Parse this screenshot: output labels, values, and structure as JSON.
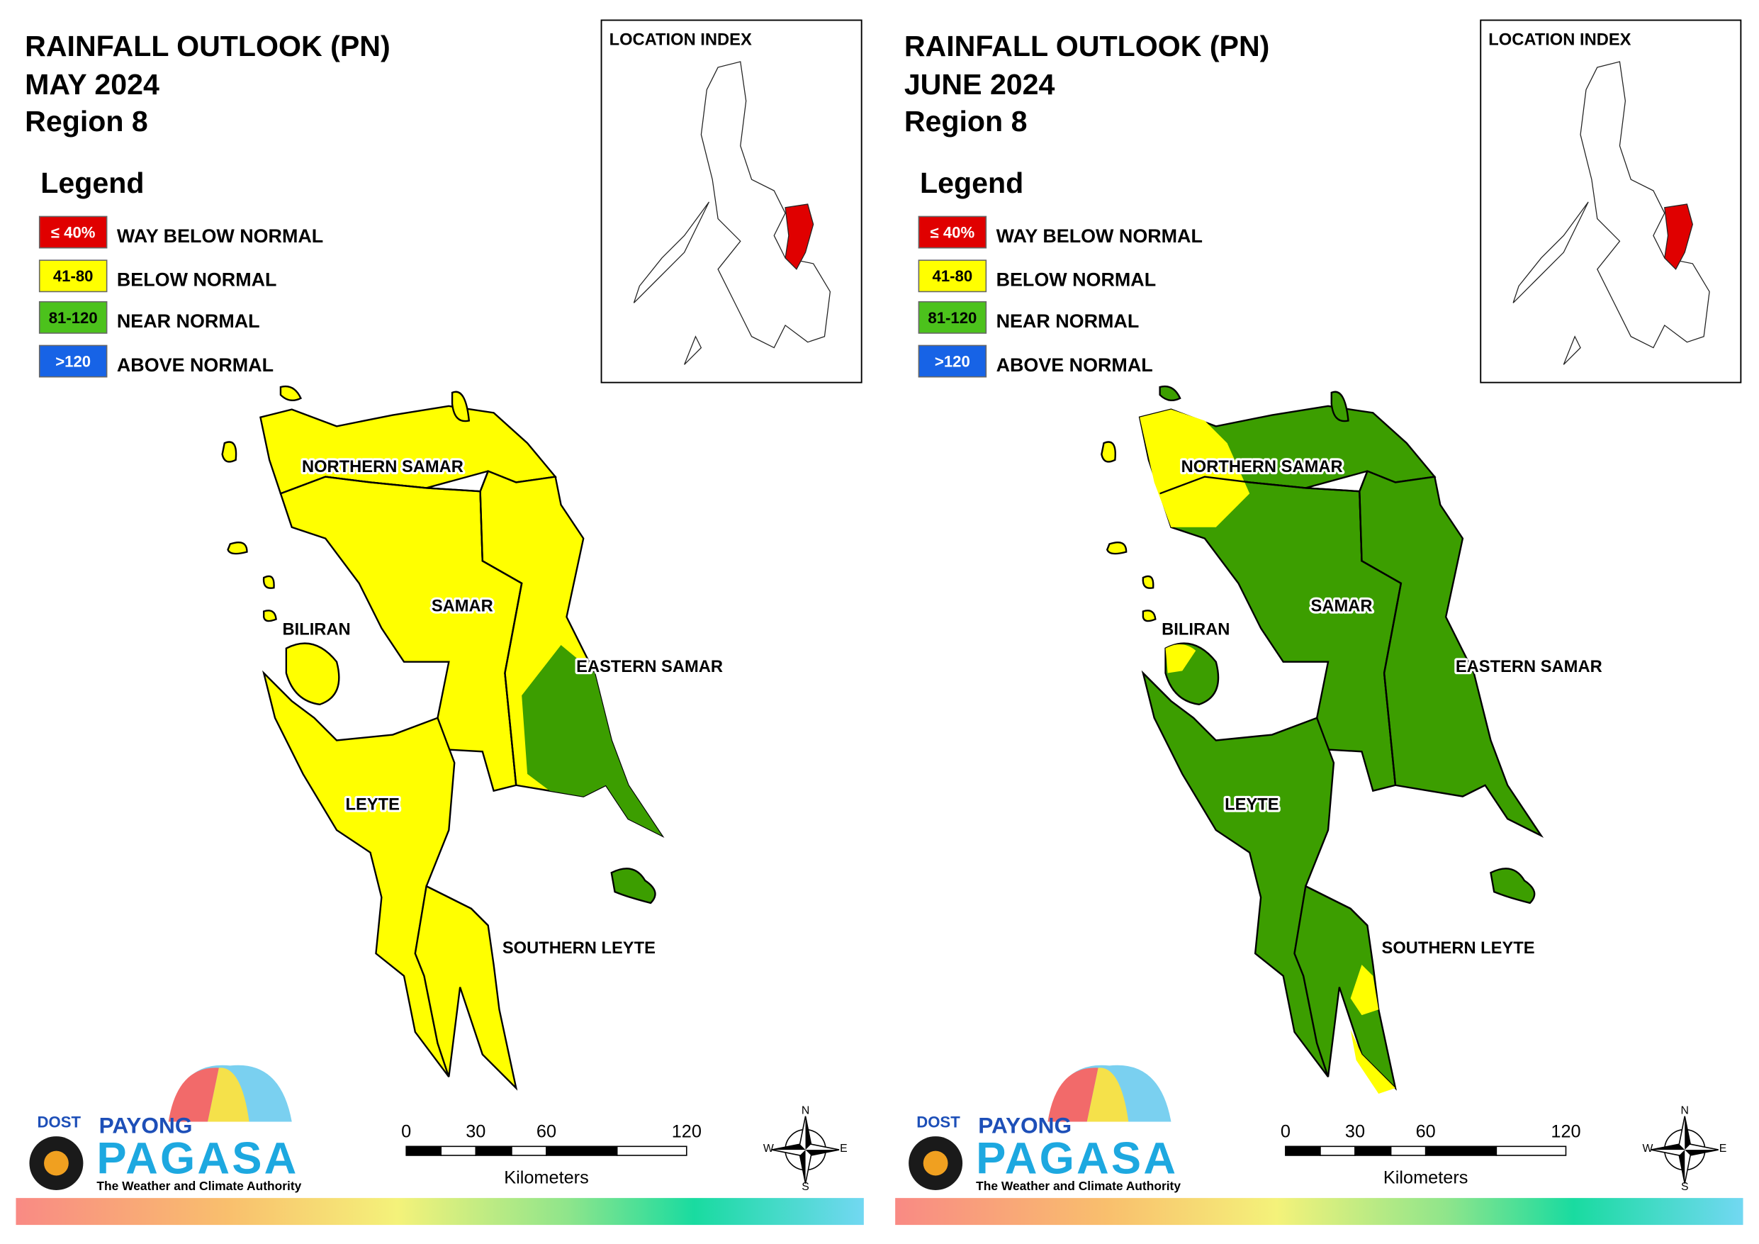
{
  "panels": [
    {
      "title": "RAINFALL OUTLOOK (PN)",
      "month": "MAY 2024",
      "region": "Region 8",
      "legend_title": "Legend",
      "legend": [
        {
          "range": "≤ 40%",
          "label": "WAY BELOW NORMAL",
          "color": "#e00000"
        },
        {
          "range": "41-80",
          "label": "BELOW NORMAL",
          "color": "#ffff00"
        },
        {
          "range": "81-120",
          "label": "NEAR NORMAL",
          "color": "#4cc21c"
        },
        {
          "range": ">120",
          "label": "ABOVE NORMAL",
          "color": "#1763e6"
        }
      ],
      "location_index": "LOCATION INDEX",
      "provinces": [
        "NORTHERN SAMAR",
        "SAMAR",
        "EASTERN SAMAR",
        "BILIRAN",
        "LEYTE",
        "SOUTHERN LEYTE"
      ],
      "scale": {
        "ticks": [
          "0",
          "30",
          "60",
          "120"
        ],
        "unit": "Kilometers"
      },
      "compass": [
        "N",
        "E",
        "S",
        "W"
      ],
      "logo": {
        "agency": "DOST",
        "name_top": "PAYONG",
        "name": "PAGASA",
        "tagline": "The Weather and Climate Authority"
      }
    },
    {
      "title": "RAINFALL OUTLOOK (PN)",
      "month": "JUNE 2024",
      "region": "Region 8",
      "legend_title": "Legend",
      "legend": [
        {
          "range": "≤ 40%",
          "label": "WAY BELOW NORMAL",
          "color": "#e00000"
        },
        {
          "range": "41-80",
          "label": "BELOW NORMAL",
          "color": "#ffff00"
        },
        {
          "range": "81-120",
          "label": "NEAR NORMAL",
          "color": "#4cc21c"
        },
        {
          "range": ">120",
          "label": "ABOVE NORMAL",
          "color": "#1763e6"
        }
      ],
      "location_index": "LOCATION INDEX",
      "provinces": [
        "NORTHERN SAMAR",
        "SAMAR",
        "EASTERN SAMAR",
        "BILIRAN",
        "LEYTE",
        "SOUTHERN LEYTE"
      ],
      "scale": {
        "ticks": [
          "0",
          "30",
          "60",
          "120"
        ],
        "unit": "Kilometers"
      },
      "compass": [
        "N",
        "E",
        "S",
        "W"
      ],
      "logo": {
        "agency": "DOST",
        "name_top": "PAYONG",
        "name": "PAGASA",
        "tagline": "The Weather and Climate Authority"
      }
    }
  ]
}
